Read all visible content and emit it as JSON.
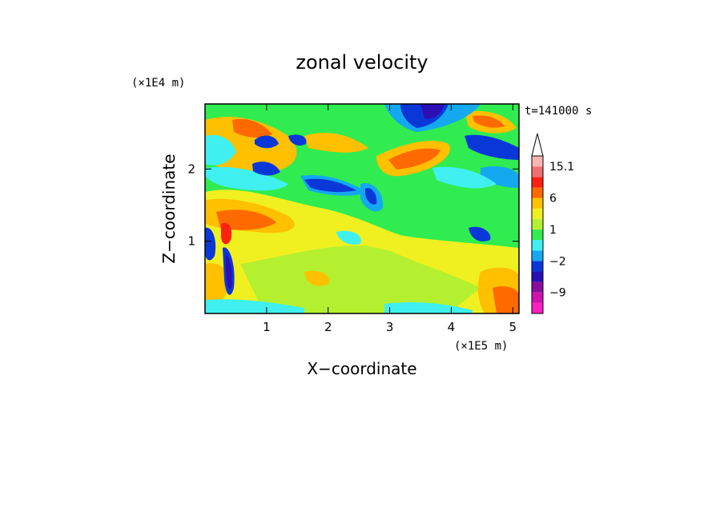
{
  "chart_data": {
    "type": "heatmap",
    "title": "zonal velocity",
    "xlabel": "X−coordinate",
    "ylabel": "Z−coordinate",
    "x_unit": "(×1E5 m)",
    "y_unit": "(×1E4 m)",
    "time_label": "t=141000 s",
    "xlim": [
      0,
      5.1
    ],
    "ylim": [
      0,
      2.9
    ],
    "x_ticks": [
      "1",
      "2",
      "3",
      "4",
      "5"
    ],
    "y_ticks": [
      "1",
      "2"
    ],
    "x_tick_values": [
      1,
      2,
      3,
      4,
      5
    ],
    "y_tick_values": [
      1,
      2
    ],
    "colorbar": {
      "levels": [
        -15,
        -12,
        -9,
        -6,
        -4,
        -2,
        -1,
        0,
        1,
        2,
        4,
        6,
        9,
        12,
        15.1
      ],
      "colors": [
        "#ff20c0",
        "#d010b0",
        "#8a0ba0",
        "#2b0fb4",
        "#0a38d8",
        "#14a8f0",
        "#40f0f0",
        "#30ec50",
        "#b4f030",
        "#f0f020",
        "#ffc000",
        "#ff6a00",
        "#ff2010",
        "#f07070",
        "#ffb4b4"
      ],
      "tick_labels": [
        "15.1",
        "6",
        "1",
        "−2",
        "−9"
      ],
      "tick_values": [
        15.1,
        6,
        1,
        -2,
        -9
      ],
      "extend_max": true
    }
  }
}
